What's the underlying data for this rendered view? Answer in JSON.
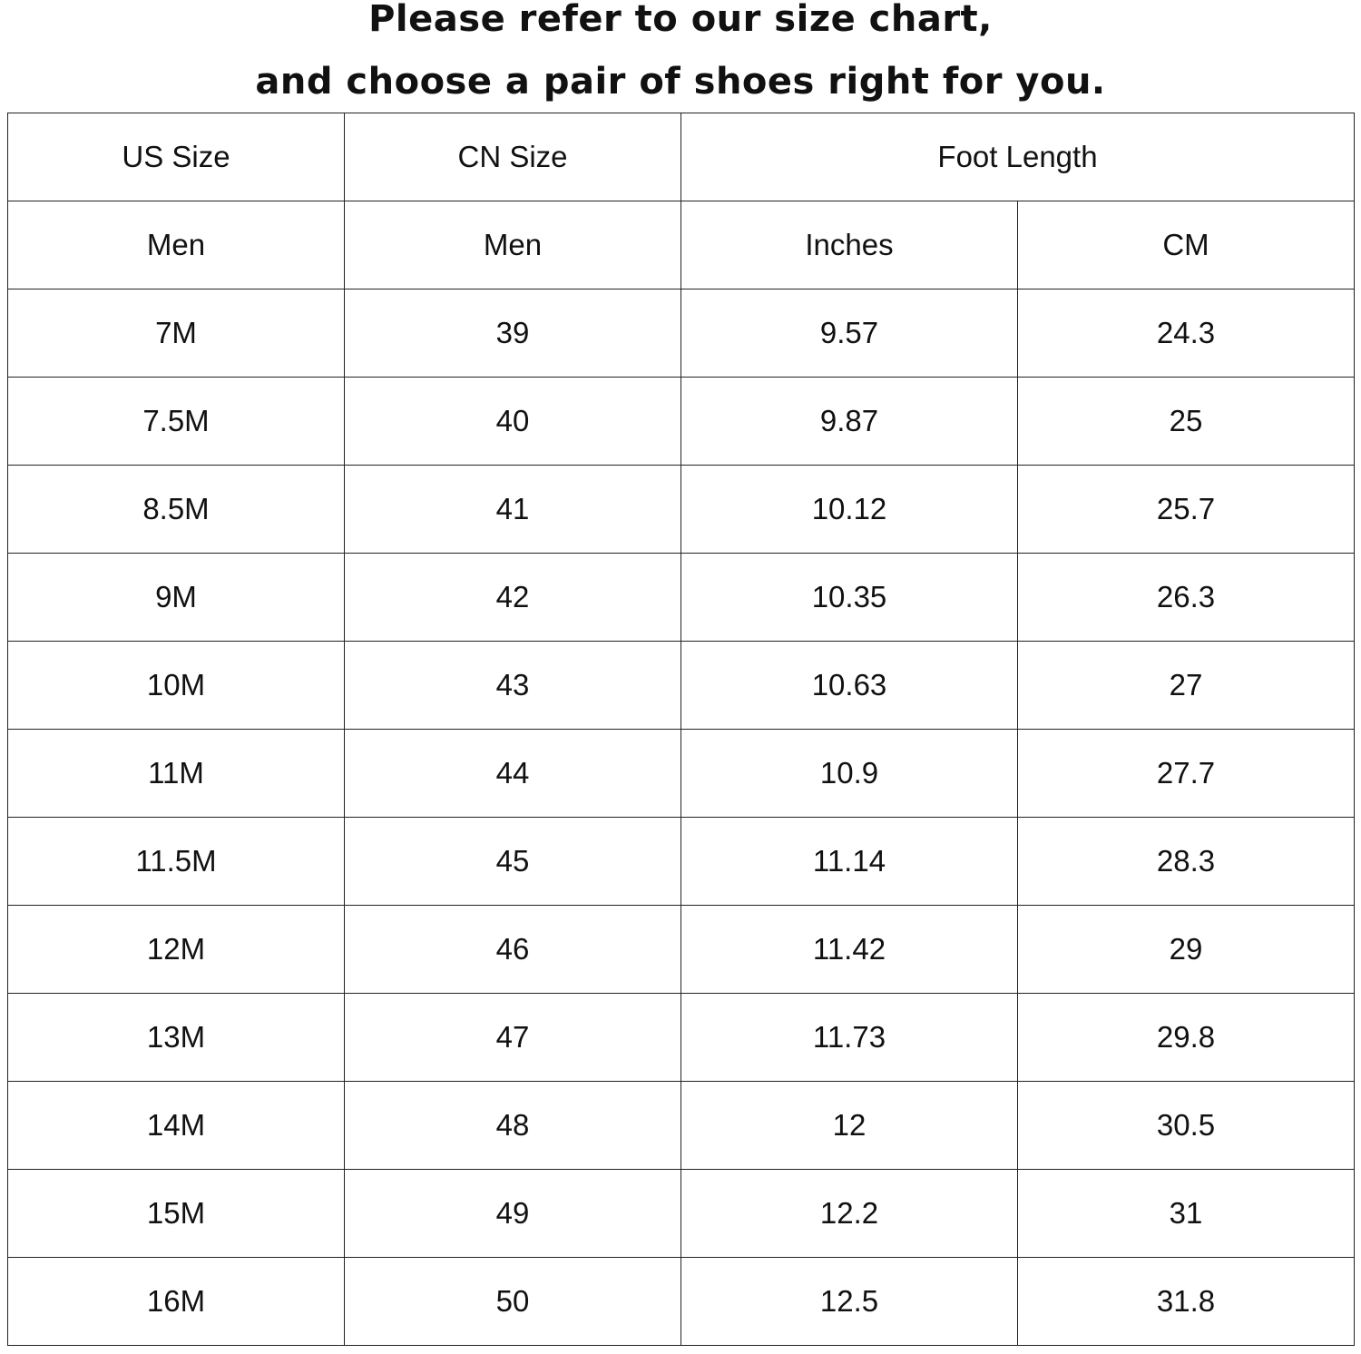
{
  "title": {
    "line1": "Please refer to our size chart,",
    "line2": "and choose a pair of shoes right for you."
  },
  "table": {
    "header1": [
      "US Size",
      "CN Size",
      "Foot Length"
    ],
    "header2": [
      "Men",
      "Men",
      "Inches",
      "CM"
    ],
    "rows": [
      [
        "7M",
        "39",
        "9.57",
        "24.3"
      ],
      [
        "7.5M",
        "40",
        "9.87",
        "25"
      ],
      [
        "8.5M",
        "41",
        "10.12",
        "25.7"
      ],
      [
        "9M",
        "42",
        "10.35",
        "26.3"
      ],
      [
        "10M",
        "43",
        "10.63",
        "27"
      ],
      [
        "11M",
        "44",
        "10.9",
        "27.7"
      ],
      [
        "11.5M",
        "45",
        "11.14",
        "28.3"
      ],
      [
        "12M",
        "46",
        "11.42",
        "29"
      ],
      [
        "13M",
        "47",
        "11.73",
        "29.8"
      ],
      [
        "14M",
        "48",
        "12",
        "30.5"
      ],
      [
        "15M",
        "49",
        "12.2",
        "31"
      ],
      [
        "16M",
        "50",
        "12.5",
        "31.8"
      ]
    ]
  }
}
